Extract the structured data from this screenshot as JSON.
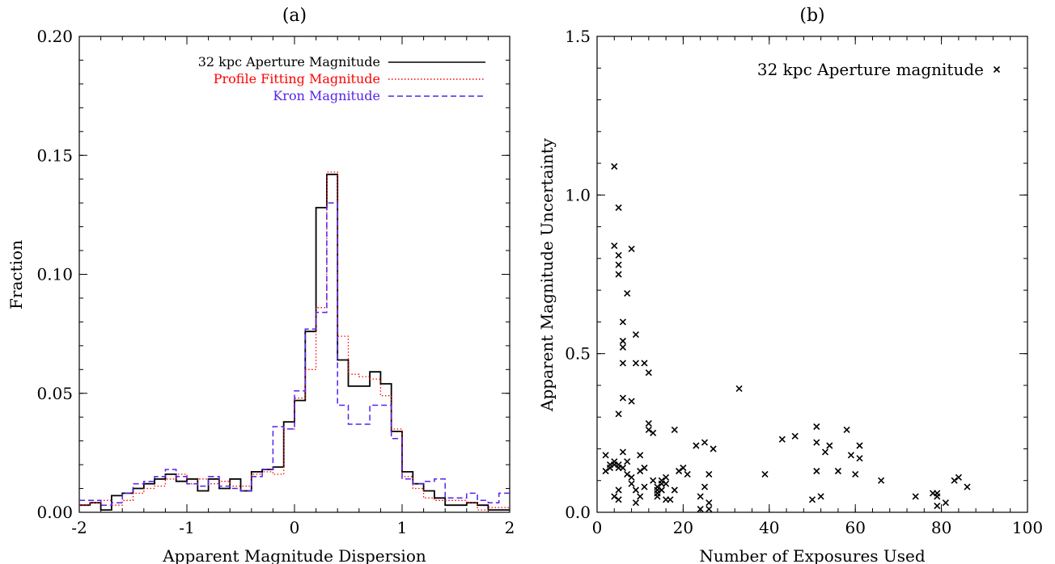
{
  "chart_data": [
    {
      "panel_label": "(a)",
      "type": "histogram",
      "xlabel": "Apparent Magnitude Dispersion",
      "ylabel": "Fraction",
      "xlim": [
        -2,
        2
      ],
      "ylim": [
        0,
        0.2
      ],
      "xticks": [
        -2,
        -1,
        0,
        1,
        2
      ],
      "xtick_labels": [
        "-2",
        "-1",
        "0",
        "1",
        "2"
      ],
      "yticks": [
        0,
        0.05,
        0.1,
        0.15,
        0.2
      ],
      "ytick_labels": [
        "0.00",
        "0.05",
        "0.10",
        "0.15",
        "0.20"
      ],
      "bin_width": 0.1,
      "bin_start": -2.0,
      "legend_position": "top-right",
      "series": [
        {
          "name": "32 kpc Aperture Magnitude",
          "color": "#000000",
          "style": "solid",
          "values": [
            0.003,
            0.004,
            0.001,
            0.007,
            0.008,
            0.01,
            0.012,
            0.014,
            0.016,
            0.013,
            0.014,
            0.009,
            0.014,
            0.01,
            0.014,
            0.009,
            0.017,
            0.018,
            0.019,
            0.038,
            0.047,
            0.076,
            0.128,
            0.142,
            0.064,
            0.053,
            0.053,
            0.059,
            0.054,
            0.034,
            0.017,
            0.012,
            0.009,
            0.006,
            0.003,
            0.003,
            0.004,
            0.003,
            0.001,
            0.001
          ]
        },
        {
          "name": "Profile Fitting Magnitude",
          "color": "#ff0000",
          "style": "dotted",
          "values": [
            0.003,
            0.004,
            0.005,
            0.003,
            0.005,
            0.008,
            0.01,
            0.011,
            0.014,
            0.016,
            0.012,
            0.014,
            0.012,
            0.013,
            0.011,
            0.011,
            0.016,
            0.017,
            0.016,
            0.035,
            0.048,
            0.06,
            0.086,
            0.143,
            0.074,
            0.058,
            0.057,
            0.056,
            0.049,
            0.035,
            0.015,
            0.01,
            0.006,
            0.005,
            0.005,
            0.005,
            0.004,
            0.001,
            0.002,
            0.002
          ]
        },
        {
          "name": "Kron Magnitude",
          "color": "#5522ee",
          "style": "dashed",
          "values": [
            0.005,
            0.005,
            0.003,
            0.004,
            0.008,
            0.012,
            0.013,
            0.015,
            0.018,
            0.015,
            0.012,
            0.011,
            0.015,
            0.011,
            0.01,
            0.009,
            0.015,
            0.018,
            0.036,
            0.035,
            0.051,
            0.077,
            0.084,
            0.13,
            0.045,
            0.037,
            0.037,
            0.045,
            0.045,
            0.031,
            0.014,
            0.012,
            0.013,
            0.014,
            0.006,
            0.006,
            0.008,
            0.005,
            0.004,
            0.008
          ]
        }
      ]
    },
    {
      "panel_label": "(b)",
      "type": "scatter",
      "xlabel": "Number of Exposures Used",
      "ylabel": "Apparent Magnitude Uncertainty",
      "xlim": [
        0,
        100
      ],
      "ylim": [
        0,
        1.5
      ],
      "xticks": [
        0,
        20,
        40,
        60,
        80,
        100
      ],
      "xtick_labels": [
        "0",
        "20",
        "40",
        "60",
        "80",
        "100"
      ],
      "yticks": [
        0,
        0.5,
        1.0,
        1.5
      ],
      "ytick_labels": [
        "0.0",
        "0.5",
        "1.0",
        "1.5"
      ],
      "legend_position": "top-right",
      "series": [
        {
          "name": "32 kpc Aperture magnitude",
          "marker": "x",
          "color": "#000000",
          "points": [
            [
              2,
              0.18
            ],
            [
              2,
              0.13
            ],
            [
              3,
              0.14
            ],
            [
              3,
              0.15
            ],
            [
              4,
              0.15
            ],
            [
              4,
              0.16
            ],
            [
              4,
              0.05
            ],
            [
              4,
              0.84
            ],
            [
              4,
              1.09
            ],
            [
              5,
              0.14
            ],
            [
              5,
              0.07
            ],
            [
              5,
              0.04
            ],
            [
              5,
              0.15
            ],
            [
              5,
              0.31
            ],
            [
              5,
              0.78
            ],
            [
              5,
              0.81
            ],
            [
              5,
              0.75
            ],
            [
              5,
              0.96
            ],
            [
              6,
              0.6
            ],
            [
              6,
              0.54
            ],
            [
              6,
              0.52
            ],
            [
              6,
              0.47
            ],
            [
              6,
              0.36
            ],
            [
              6,
              0.19
            ],
            [
              6,
              0.14
            ],
            [
              7,
              0.69
            ],
            [
              7,
              0.12
            ],
            [
              7,
              0.16
            ],
            [
              8,
              0.35
            ],
            [
              8,
              0.83
            ],
            [
              8,
              0.11
            ],
            [
              8,
              0.09
            ],
            [
              9,
              0.56
            ],
            [
              9,
              0.47
            ],
            [
              9,
              0.07
            ],
            [
              9,
              0.03
            ],
            [
              10,
              0.18
            ],
            [
              10,
              0.05
            ],
            [
              10,
              0.13
            ],
            [
              11,
              0.47
            ],
            [
              11,
              0.14
            ],
            [
              11,
              0.08
            ],
            [
              12,
              0.44
            ],
            [
              12,
              0.28
            ],
            [
              12,
              0.26
            ],
            [
              13,
              0.25
            ],
            [
              13,
              0.1
            ],
            [
              14,
              0.06
            ],
            [
              14,
              0.05
            ],
            [
              14,
              0.07
            ],
            [
              14,
              0.08
            ],
            [
              15,
              0.09
            ],
            [
              15,
              0.1
            ],
            [
              15,
              0.07
            ],
            [
              16,
              0.11
            ],
            [
              16,
              0.09
            ],
            [
              16,
              0.04
            ],
            [
              17,
              0.04
            ],
            [
              18,
              0.26
            ],
            [
              18,
              0.07
            ],
            [
              19,
              0.13
            ],
            [
              20,
              0.14
            ],
            [
              21,
              0.12
            ],
            [
              23,
              0.21
            ],
            [
              24,
              0.05
            ],
            [
              24,
              0.01
            ],
            [
              25,
              0.22
            ],
            [
              25,
              0.08
            ],
            [
              26,
              0.12
            ],
            [
              26,
              0.03
            ],
            [
              26,
              0.01
            ],
            [
              27,
              0.2
            ],
            [
              33,
              0.39
            ],
            [
              39,
              0.12
            ],
            [
              43,
              0.23
            ],
            [
              46,
              0.24
            ],
            [
              50,
              0.04
            ],
            [
              51,
              0.27
            ],
            [
              51,
              0.22
            ],
            [
              51,
              0.13
            ],
            [
              52,
              0.05
            ],
            [
              53,
              0.19
            ],
            [
              54,
              0.21
            ],
            [
              56,
              0.13
            ],
            [
              58,
              0.26
            ],
            [
              59,
              0.18
            ],
            [
              60,
              0.12
            ],
            [
              61,
              0.21
            ],
            [
              61,
              0.17
            ],
            [
              66,
              0.1
            ],
            [
              74,
              0.05
            ],
            [
              78,
              0.06
            ],
            [
              79,
              0.05
            ],
            [
              79,
              0.02
            ],
            [
              79,
              0.06
            ],
            [
              81,
              0.03
            ],
            [
              83,
              0.1
            ],
            [
              84,
              0.11
            ],
            [
              86,
              0.08
            ]
          ]
        }
      ]
    }
  ]
}
